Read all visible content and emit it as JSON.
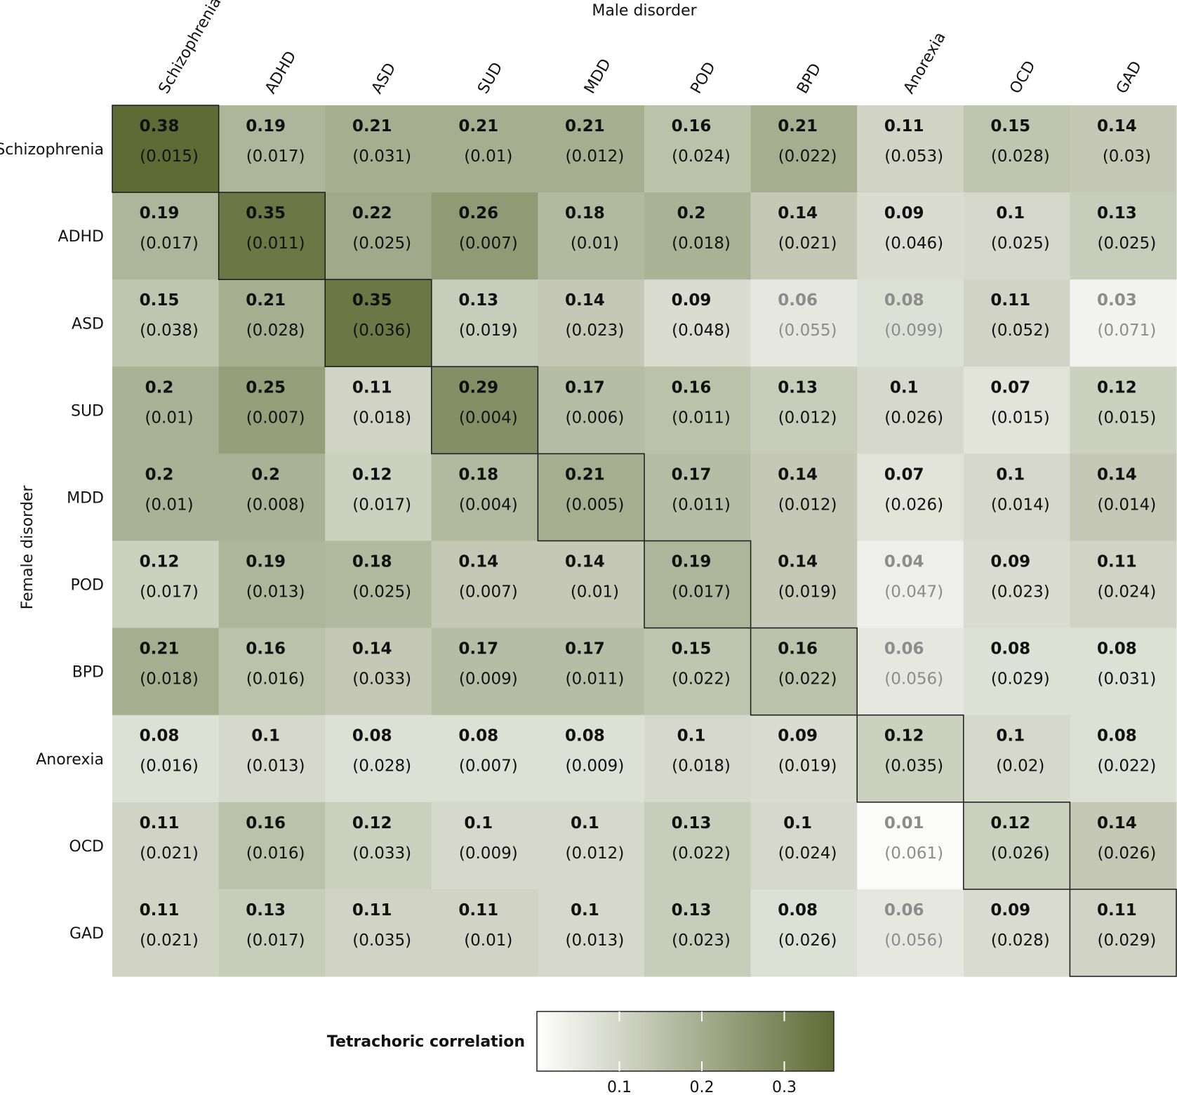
{
  "chart_data": {
    "type": "heatmap",
    "xlabel": "Male disorder",
    "ylabel": "Female disorder",
    "columns": [
      "Schizophrenia",
      "ADHD",
      "ASD",
      "SUD",
      "MDD",
      "POD",
      "BPD",
      "Anorexia",
      "OCD",
      "GAD"
    ],
    "rows": [
      "Schizophrenia",
      "ADHD",
      "ASD",
      "SUD",
      "MDD",
      "POD",
      "BPD",
      "Anorexia",
      "OCD",
      "GAD"
    ],
    "values": [
      [
        "0.38",
        "0.19",
        "0.21",
        "0.21",
        "0.21",
        "0.16",
        "0.21",
        "0.11",
        "0.15",
        "0.14"
      ],
      [
        "0.19",
        "0.35",
        "0.22",
        "0.26",
        "0.18",
        "0.2",
        "0.14",
        "0.09",
        "0.1",
        "0.13"
      ],
      [
        "0.15",
        "0.21",
        "0.35",
        "0.13",
        "0.14",
        "0.09",
        "0.06",
        "0.08",
        "0.11",
        "0.03"
      ],
      [
        "0.2",
        "0.25",
        "0.11",
        "0.29",
        "0.17",
        "0.16",
        "0.13",
        "0.1",
        "0.07",
        "0.12"
      ],
      [
        "0.2",
        "0.2",
        "0.12",
        "0.18",
        "0.21",
        "0.17",
        "0.14",
        "0.07",
        "0.1",
        "0.14"
      ],
      [
        "0.12",
        "0.19",
        "0.18",
        "0.14",
        "0.14",
        "0.19",
        "0.14",
        "0.04",
        "0.09",
        "0.11"
      ],
      [
        "0.21",
        "0.16",
        "0.14",
        "0.17",
        "0.17",
        "0.15",
        "0.16",
        "0.06",
        "0.08",
        "0.08"
      ],
      [
        "0.08",
        "0.1",
        "0.08",
        "0.08",
        "0.08",
        "0.1",
        "0.09",
        "0.12",
        "0.1",
        "0.08"
      ],
      [
        "0.11",
        "0.16",
        "0.12",
        "0.1",
        "0.1",
        "0.13",
        "0.1",
        "0.01",
        "0.12",
        "0.14"
      ],
      [
        "0.11",
        "0.13",
        "0.11",
        "0.11",
        "0.1",
        "0.13",
        "0.08",
        "0.06",
        "0.09",
        "0.11"
      ]
    ],
    "standard_errors": [
      [
        "(0.015)",
        "(0.017)",
        "(0.031)",
        "(0.01)",
        "(0.012)",
        "(0.024)",
        "(0.022)",
        "(0.053)",
        "(0.028)",
        "(0.03)"
      ],
      [
        "(0.017)",
        "(0.011)",
        "(0.025)",
        "(0.007)",
        "(0.01)",
        "(0.018)",
        "(0.021)",
        "(0.046)",
        "(0.025)",
        "(0.025)"
      ],
      [
        "(0.038)",
        "(0.028)",
        "(0.036)",
        "(0.019)",
        "(0.023)",
        "(0.048)",
        "(0.055)",
        "(0.099)",
        "(0.052)",
        "(0.071)"
      ],
      [
        "(0.01)",
        "(0.007)",
        "(0.018)",
        "(0.004)",
        "(0.006)",
        "(0.011)",
        "(0.012)",
        "(0.026)",
        "(0.015)",
        "(0.015)"
      ],
      [
        "(0.01)",
        "(0.008)",
        "(0.017)",
        "(0.004)",
        "(0.005)",
        "(0.011)",
        "(0.012)",
        "(0.026)",
        "(0.014)",
        "(0.014)"
      ],
      [
        "(0.017)",
        "(0.013)",
        "(0.025)",
        "(0.007)",
        "(0.01)",
        "(0.017)",
        "(0.019)",
        "(0.047)",
        "(0.023)",
        "(0.024)"
      ],
      [
        "(0.018)",
        "(0.016)",
        "(0.033)",
        "(0.009)",
        "(0.011)",
        "(0.022)",
        "(0.022)",
        "(0.056)",
        "(0.029)",
        "(0.031)"
      ],
      [
        "(0.016)",
        "(0.013)",
        "(0.028)",
        "(0.007)",
        "(0.009)",
        "(0.018)",
        "(0.019)",
        "(0.035)",
        "(0.02)",
        "(0.022)"
      ],
      [
        "(0.021)",
        "(0.016)",
        "(0.033)",
        "(0.009)",
        "(0.012)",
        "(0.022)",
        "(0.024)",
        "(0.061)",
        "(0.026)",
        "(0.026)"
      ],
      [
        "(0.021)",
        "(0.017)",
        "(0.035)",
        "(0.01)",
        "(0.013)",
        "(0.023)",
        "(0.026)",
        "(0.056)",
        "(0.028)",
        "(0.029)"
      ]
    ],
    "not_significant": [
      [
        2,
        6
      ],
      [
        2,
        7
      ],
      [
        2,
        9
      ],
      [
        5,
        7
      ],
      [
        6,
        7
      ],
      [
        8,
        7
      ],
      [
        9,
        7
      ]
    ],
    "diagonal_outlined": true,
    "color_scale": {
      "low_color": "#ffffff",
      "high_color": "#5f6b35",
      "domain": [
        0,
        0.38
      ]
    },
    "legend": {
      "title": "Tetrachoric correlation",
      "placement": "bottom-center",
      "ticks": [
        "0.1",
        "0.2",
        "0.3"
      ],
      "range": [
        0,
        0.36
      ]
    },
    "text_colors": {
      "significant": "#111111",
      "not_significant": "#8c8c8c"
    }
  }
}
